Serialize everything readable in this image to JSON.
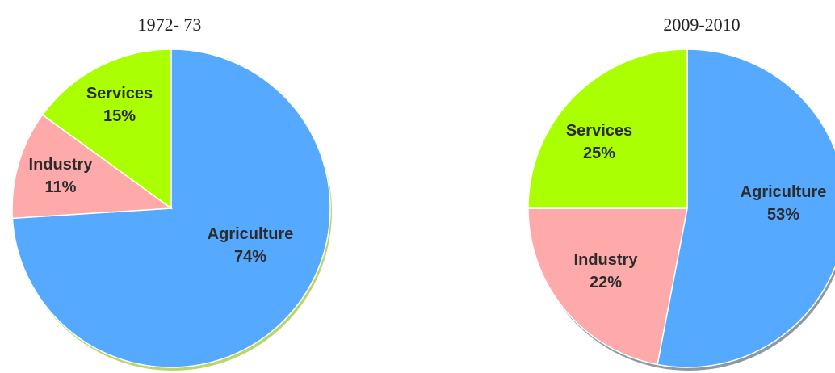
{
  "chart_data": [
    {
      "type": "pie",
      "title": "1972- 73",
      "slices": [
        {
          "label": "Agriculture",
          "value": 74,
          "value_label": "74%",
          "color": "#55aaff"
        },
        {
          "label": "Industry",
          "value": 11,
          "value_label": "11%",
          "color": "#ffaaaa"
        },
        {
          "label": "Services",
          "value": 15,
          "value_label": "15%",
          "color": "#aaff00"
        }
      ]
    },
    {
      "type": "pie",
      "title": "2009-2010",
      "slices": [
        {
          "label": "Agriculture",
          "value": 53,
          "value_label": "53%",
          "color": "#55aaff"
        },
        {
          "label": "Industry",
          "value": 22,
          "value_label": "22%",
          "color": "#ffaaaa"
        },
        {
          "label": "Services",
          "value": 25,
          "value_label": "25%",
          "color": "#aaff00"
        }
      ]
    }
  ]
}
